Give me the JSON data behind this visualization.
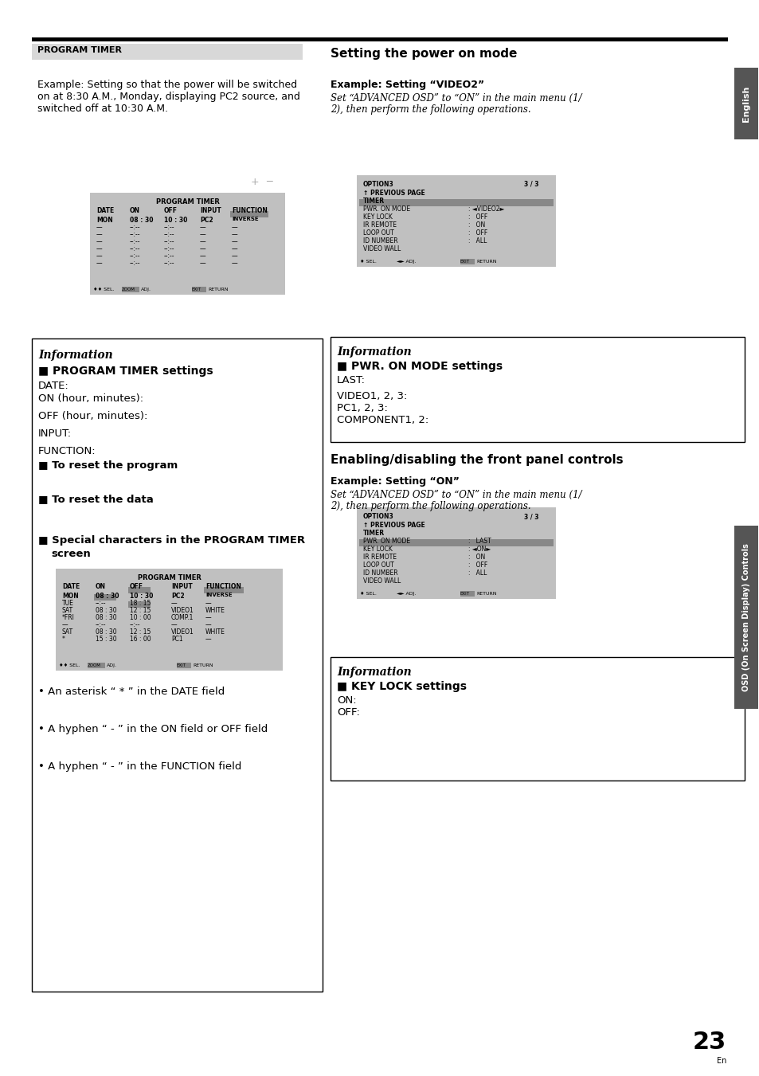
{
  "page_num": "23",
  "page_sub": "En",
  "left_header": "PROGRAM TIMER",
  "right_header": "Setting the power on mode",
  "left_body_text": [
    "Example: Setting so that the power will be switched",
    "on at 8:30 A.M., Monday, displaying PC2 source, and",
    "switched off at 10:30 A.M."
  ],
  "right_body_line1": "Example: Setting “VIDEO2”",
  "right_body_italic": [
    "Set “ADVANCED OSD” to “ON” in the main menu (1/",
    "2), then perform the following operations."
  ],
  "osd1_title": "PROGRAM TIMER",
  "osd1_header": [
    "DATE",
    "ON",
    "OFF",
    "INPUT",
    "FUNCTION"
  ],
  "osd1_rows": [
    [
      "MON",
      "08 : 30",
      "10 : 30",
      "PC2",
      "INVERSE"
    ],
    [
      "—",
      "--:--",
      "--:--",
      "—",
      "—"
    ],
    [
      "—",
      "--:--",
      "--:--",
      "—",
      "—"
    ],
    [
      "—",
      "--:--",
      "--:--",
      "—",
      "—"
    ],
    [
      "—",
      "--:--",
      "--:--",
      "—",
      "—"
    ],
    [
      "—",
      "--:--",
      "--:--",
      "—",
      "—"
    ],
    [
      "—",
      "--:--",
      "--:--",
      "—",
      "—"
    ]
  ],
  "osd2_rows": [
    [
      "↑ PREVIOUS PAGE",
      ""
    ],
    [
      "TIMER",
      ""
    ],
    [
      "PWR. ON MODE",
      ": ◄VIDEO2►"
    ],
    [
      "KEY LOCK",
      ":   OFF"
    ],
    [
      "IR REMOTE",
      ":   ON"
    ],
    [
      "LOOP OUT",
      ":   OFF"
    ],
    [
      "ID NUMBER",
      ":   ALL"
    ],
    [
      "VIDEO WALL",
      ""
    ]
  ],
  "osd2_highlight_row": 2,
  "osd3_rows": [
    [
      "↑ PREVIOUS PAGE",
      ""
    ],
    [
      "TIMER",
      ""
    ],
    [
      "PWR. ON MODE",
      ":   LAST"
    ],
    [
      "KEY LOCK",
      ": ◄ON►"
    ],
    [
      "IR REMOTE",
      ":   ON"
    ],
    [
      "LOOP OUT",
      ":   OFF"
    ],
    [
      "ID NUMBER",
      ":   ALL"
    ],
    [
      "VIDEO WALL",
      ""
    ]
  ],
  "osd3_highlight_row": 3,
  "osd4_header": [
    "DATE",
    "ON",
    "OFF",
    "INPUT",
    "FUNCTION"
  ],
  "osd4_rows": [
    [
      "MON",
      "08 : 30",
      "10 : 30",
      "PC2",
      "INVERSE"
    ],
    [
      "TUE",
      "--:--",
      "18 : 15",
      "—",
      "—"
    ],
    [
      "SAT",
      "08 : 30",
      "12 : 15",
      "VIDEO1",
      "WHITE"
    ],
    [
      "*FRI",
      "08 : 30",
      "10 : 00",
      "COMP.1",
      "—"
    ],
    [
      "—",
      "--:--",
      "--:--",
      "—",
      "—"
    ],
    [
      "SAT",
      "08 : 30",
      "12 : 15",
      "VIDEO1",
      "WHITE"
    ],
    [
      "*",
      "15 : 30",
      "16 : 00",
      "PC1",
      "—"
    ]
  ],
  "right_header2": "Enabling/disabling the front panel controls",
  "right_body2_line1": "Example: Setting “ON”",
  "right_body2_italic": [
    "Set “ADVANCED OSD” to “ON” in the main menu (1/",
    "2), then perform the following operations."
  ],
  "bullet_texts": [
    "• An asterisk “ * ” in the DATE field",
    "• A hyphen “ - ” in the ON field or OFF field",
    "• A hyphen “ - ” in the FUNCTION field"
  ],
  "sidebar_text": "OSD (On Screen Display) Controls",
  "info1_italic": "Information",
  "info1_heading": "■ PROGRAM TIMER settings",
  "info2_italic": "Information",
  "info2_heading": "■ PWR. ON MODE settings",
  "info3_italic": "Information",
  "info3_heading": "■ KEY LOCK settings"
}
